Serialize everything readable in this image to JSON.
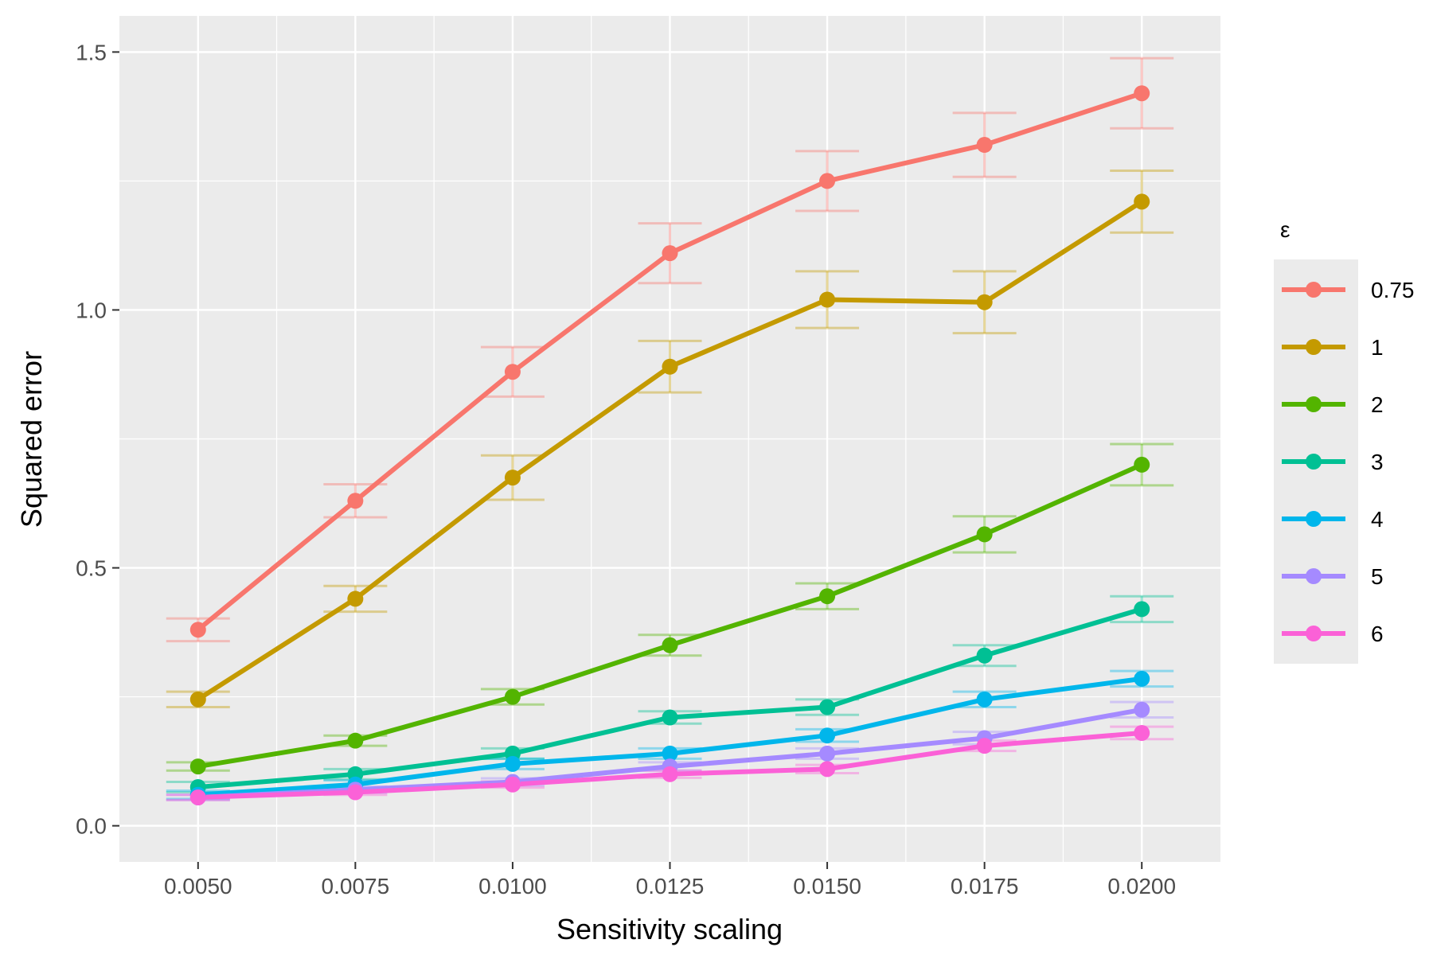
{
  "chart_data": {
    "type": "line",
    "title": "",
    "xlabel": "Sensitivity scaling",
    "ylabel": "Squared error",
    "x": [
      0.005,
      0.0075,
      0.01,
      0.0125,
      0.015,
      0.0175,
      0.02
    ],
    "x_tick_labels": [
      "0.0050",
      "0.0075",
      "0.0100",
      "0.0125",
      "0.0150",
      "0.0175",
      "0.0200"
    ],
    "y_ticks": [
      0.0,
      0.5,
      1.0,
      1.5
    ],
    "y_tick_labels": [
      "0.0",
      "0.5",
      "1.0",
      "1.5"
    ],
    "xlim": [
      0.00375,
      0.02125
    ],
    "ylim": [
      -0.07,
      1.57
    ],
    "grid": true,
    "legend": {
      "title": "ε",
      "position": "right"
    },
    "series": [
      {
        "name": "0.75",
        "color": "#F8766D",
        "values": [
          0.38,
          0.63,
          0.88,
          1.11,
          1.25,
          1.32,
          1.42
        ],
        "errors": [
          0.022,
          0.032,
          0.048,
          0.058,
          0.058,
          0.062,
          0.068
        ]
      },
      {
        "name": "1",
        "color": "#C49A00",
        "values": [
          0.245,
          0.44,
          0.675,
          0.89,
          1.02,
          1.015,
          1.21
        ],
        "errors": [
          0.015,
          0.025,
          0.043,
          0.05,
          0.055,
          0.06,
          0.06
        ]
      },
      {
        "name": "2",
        "color": "#53B400",
        "values": [
          0.115,
          0.165,
          0.25,
          0.35,
          0.445,
          0.565,
          0.7
        ],
        "errors": [
          0.008,
          0.01,
          0.015,
          0.02,
          0.025,
          0.035,
          0.04
        ]
      },
      {
        "name": "3",
        "color": "#00C094",
        "values": [
          0.075,
          0.1,
          0.14,
          0.21,
          0.23,
          0.33,
          0.42
        ],
        "errors": [
          0.01,
          0.01,
          0.01,
          0.012,
          0.015,
          0.02,
          0.025
        ]
      },
      {
        "name": "4",
        "color": "#00B6EB",
        "values": [
          0.06,
          0.08,
          0.12,
          0.14,
          0.175,
          0.245,
          0.285
        ],
        "errors": [
          0.008,
          0.008,
          0.01,
          0.01,
          0.012,
          0.015,
          0.015
        ]
      },
      {
        "name": "5",
        "color": "#A58AFF",
        "values": [
          0.055,
          0.07,
          0.085,
          0.115,
          0.14,
          0.17,
          0.225
        ],
        "errors": [
          0.005,
          0.006,
          0.007,
          0.008,
          0.01,
          0.012,
          0.015
        ]
      },
      {
        "name": "6",
        "color": "#FB61D7",
        "values": [
          0.055,
          0.065,
          0.08,
          0.1,
          0.11,
          0.155,
          0.18
        ],
        "errors": [
          0.005,
          0.005,
          0.006,
          0.007,
          0.008,
          0.01,
          0.012
        ]
      }
    ]
  }
}
